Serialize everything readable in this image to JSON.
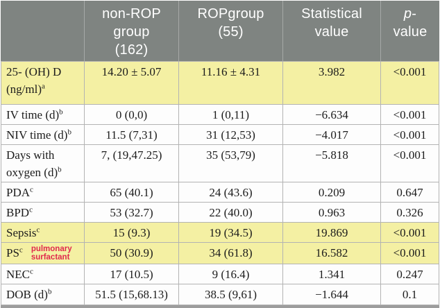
{
  "colors": {
    "header_bg": "#7f8481",
    "header_text": "#ffffff",
    "header_separator": "#a6a9a7",
    "highlight_yellow": "#f4f0a3",
    "row_white": "#fdfdfd",
    "border_gray": "#b3b3b3",
    "text_black": "#1b1b1b",
    "annotation_red": "#e0294d",
    "bottom_bar_gray": "#9d9d9d"
  },
  "table": {
    "header": {
      "empty": "",
      "non_rop": [
        "non-ROP",
        "group",
        "(162)"
      ],
      "rop": [
        "ROPgroup",
        "(55)"
      ],
      "statistical": [
        "Statistical",
        "value"
      ],
      "p_value": {
        "line1_italic": "p",
        "line1_rest": "-",
        "line2": "value"
      }
    },
    "rows": [
      {
        "label_lines": [
          "25- (OH) D",
          "(ng/ml)"
        ],
        "sup": "a",
        "highlight": true,
        "values": [
          "14.20 ± 5.07",
          "11.16 ± 4.31",
          "3.982",
          "<0.001"
        ]
      },
      {
        "label_lines": [
          "IV time (d)"
        ],
        "sup": "b",
        "highlight": false,
        "values": [
          "0 (0,0)",
          "1 (0,11)",
          "−6.634",
          "<0.001"
        ]
      },
      {
        "label_lines": [
          "NIV time (d)"
        ],
        "sup": "b",
        "highlight": false,
        "values": [
          "11.5 (7,31)",
          "31 (12,53)",
          "−4.017",
          "<0.001"
        ]
      },
      {
        "label_lines": [
          "Days with",
          "oxygen (d)"
        ],
        "sup": "b",
        "highlight": false,
        "values": [
          "7, (19,47.25)",
          "35 (53,79)",
          "−5.818",
          "<0.001"
        ]
      },
      {
        "label_lines": [
          "PDA"
        ],
        "sup": "c",
        "highlight": false,
        "values": [
          "65 (40.1)",
          "24 (43.6)",
          "0.209",
          "0.647"
        ]
      },
      {
        "label_lines": [
          "BPD"
        ],
        "sup": "c",
        "highlight": false,
        "values": [
          "53 (32.7)",
          "22 (40.0)",
          "0.963",
          "0.326"
        ]
      },
      {
        "label_lines": [
          "Sepsis"
        ],
        "sup": "c",
        "highlight": true,
        "values": [
          "15 (9.3)",
          "19 (34.5)",
          "19.869",
          "<0.001"
        ]
      },
      {
        "label_lines": [
          "PS"
        ],
        "sup": "c",
        "highlight": true,
        "annotation_lines": [
          "pulmonary",
          "surfactant"
        ],
        "values": [
          "50 (30.9)",
          "34 (61.8)",
          "16.582",
          "<0.001"
        ]
      },
      {
        "label_lines": [
          "NEC"
        ],
        "sup": "c",
        "highlight": false,
        "values": [
          "17 (10.5)",
          "9 (16.4)",
          "1.341",
          "0.247"
        ]
      },
      {
        "label_lines": [
          "DOB (d)"
        ],
        "sup": "b",
        "highlight": false,
        "values": [
          "51.5 (15,68.13)",
          "38.5 (9,61)",
          "−1.644",
          "0.1"
        ]
      }
    ]
  }
}
